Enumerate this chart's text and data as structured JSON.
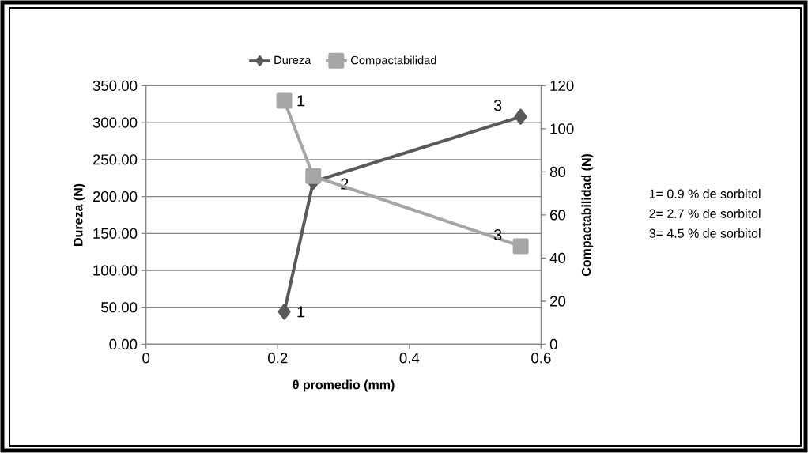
{
  "chart_data": {
    "type": "line",
    "xlabel": "θ promedio (mm)",
    "ylabel": "Dureza (N)",
    "y2label": "Compactabilidad (N)",
    "x": [
      0.21,
      0.254,
      0.569
    ],
    "series": [
      {
        "name": "Dureza",
        "color": "#595959",
        "marker": "diamond",
        "values": [
          44,
          220,
          308
        ]
      },
      {
        "name": "Compactabilidad",
        "color": "#a6a6a6",
        "marker": "square",
        "axis": "y2",
        "values": [
          113,
          78,
          45.5
        ]
      }
    ],
    "xlim": [
      0,
      0.6
    ],
    "xticks": [
      0,
      0.2,
      0.4,
      0.6
    ],
    "ylim": [
      0,
      350
    ],
    "yticks": [
      {
        "value": 0,
        "label": "0.00"
      },
      {
        "value": 50,
        "label": "50.00"
      },
      {
        "value": 100,
        "label": "100.00"
      },
      {
        "value": 150,
        "label": "150.00"
      },
      {
        "value": 200,
        "label": "200.00"
      },
      {
        "value": 250,
        "label": "250.00"
      },
      {
        "value": 300,
        "label": "300.00"
      },
      {
        "value": 350,
        "label": "350.00"
      }
    ],
    "y2lim": [
      0,
      120
    ],
    "y2ticks": [
      0,
      20,
      40,
      60,
      80,
      100,
      120
    ],
    "grid": "y",
    "legend": "top",
    "annotations": [
      {
        "text": "1",
        "x": 0.21,
        "y": 44
      },
      {
        "text": "2",
        "x": 0.254,
        "y": 220
      },
      {
        "text": "3",
        "x": 0.569,
        "y": 308
      },
      "1",
      "3",
      "1= 0.9 % de sorbitol",
      "2= 2.7 % de sorbitol",
      "3= 4.5 % de sorbitol"
    ]
  }
}
